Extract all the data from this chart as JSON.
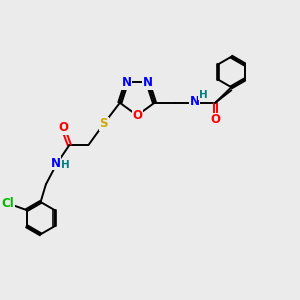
{
  "bg_color": "#ebebeb",
  "bond_color": "#000000",
  "colors": {
    "N": "#0000ff",
    "O": "#ff0000",
    "S": "#ccaa00",
    "Cl": "#00bb00",
    "C": "#000000",
    "H": "#008080"
  },
  "figsize": [
    3.0,
    3.0
  ],
  "dpi": 100
}
